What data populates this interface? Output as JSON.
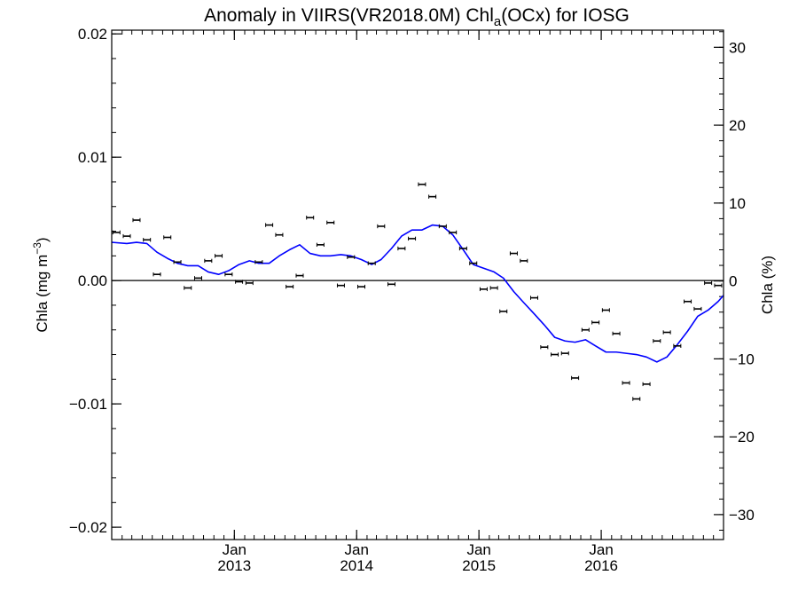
{
  "chart_data": {
    "type": "scatter",
    "title_main": "Anomaly in VIIRS(VR2018.0M) Chl",
    "title_sub": "a",
    "title_tail": "(OCx) for IOSG",
    "ylabel_left_main": "Chla (mg m",
    "ylabel_left_sup": "−3",
    "ylabel_left_tail": ")",
    "ylabel_right": "Chla (%)",
    "xlim": [
      "2012-01-01",
      "2016-12-31"
    ],
    "ylim": [
      -0.021,
      0.0203
    ],
    "ylim_right": [
      -33.2,
      32.2
    ],
    "grid": false,
    "y_ticks": [
      {
        "v": -0.02,
        "label": "−0.02"
      },
      {
        "v": -0.01,
        "label": "−0.01"
      },
      {
        "v": 0.0,
        "label": "0.00"
      },
      {
        "v": 0.01,
        "label": "0.01"
      },
      {
        "v": 0.02,
        "label": "0.02"
      }
    ],
    "y_minor_step": 0.002,
    "y2_ticks": [
      {
        "v": -30,
        "label": "−30"
      },
      {
        "v": -20,
        "label": "−20"
      },
      {
        "v": -10,
        "label": "−10"
      },
      {
        "v": 0,
        "label": "0"
      },
      {
        "v": 10,
        "label": "10"
      },
      {
        "v": 20,
        "label": "20"
      },
      {
        "v": 30,
        "label": "30"
      }
    ],
    "y2_minor_step": 2,
    "x_ticks": [
      {
        "date": "2013-01-01",
        "month": "Jan",
        "year": "2013"
      },
      {
        "date": "2014-01-01",
        "month": "Jan",
        "year": "2014"
      },
      {
        "date": "2015-01-01",
        "month": "Jan",
        "year": "2015"
      },
      {
        "date": "2016-01-01",
        "month": "Jan",
        "year": "2016"
      }
    ],
    "colors": {
      "points": "#000000",
      "line": "#0000ff",
      "zero_line": "#000000"
    },
    "series": [
      {
        "kind": "monthly_anomaly",
        "points": [
          [
            "2012-01-15",
            0.0039
          ],
          [
            "2012-02-15",
            0.0036
          ],
          [
            "2012-03-15",
            0.0049
          ],
          [
            "2012-04-15",
            0.0033
          ],
          [
            "2012-05-15",
            0.0005
          ],
          [
            "2012-06-15",
            0.0035
          ],
          [
            "2012-07-15",
            0.0015
          ],
          [
            "2012-08-15",
            -0.0006
          ],
          [
            "2012-09-15",
            0.0002
          ],
          [
            "2012-10-15",
            0.0016
          ],
          [
            "2012-11-15",
            0.002
          ],
          [
            "2012-12-15",
            0.0005
          ],
          [
            "2013-01-15",
            -0.0001
          ],
          [
            "2013-02-15",
            -0.0002
          ],
          [
            "2013-03-15",
            0.0015
          ],
          [
            "2013-04-15",
            0.0045
          ],
          [
            "2013-05-15",
            0.0037
          ],
          [
            "2013-06-15",
            -0.0005
          ],
          [
            "2013-07-15",
            0.0004
          ],
          [
            "2013-08-15",
            0.0051
          ],
          [
            "2013-09-15",
            0.0029
          ],
          [
            "2013-10-15",
            0.0047
          ],
          [
            "2013-11-15",
            -0.0004
          ],
          [
            "2013-12-15",
            0.0019
          ],
          [
            "2014-01-15",
            -0.0005
          ],
          [
            "2014-02-15",
            0.0014
          ],
          [
            "2014-03-15",
            0.0044
          ],
          [
            "2014-04-15",
            -0.0003
          ],
          [
            "2014-05-15",
            0.0026
          ],
          [
            "2014-06-15",
            0.0034
          ],
          [
            "2014-07-15",
            0.0078
          ],
          [
            "2014-08-15",
            0.0068
          ],
          [
            "2014-09-15",
            0.0044
          ],
          [
            "2014-10-15",
            0.0039
          ],
          [
            "2014-11-15",
            0.0026
          ],
          [
            "2014-12-15",
            0.0014
          ],
          [
            "2015-01-15",
            -0.0007
          ],
          [
            "2015-02-15",
            -0.0006
          ],
          [
            "2015-03-15",
            -0.0025
          ],
          [
            "2015-04-15",
            0.0022
          ],
          [
            "2015-05-15",
            0.0016
          ],
          [
            "2015-06-15",
            -0.0014
          ],
          [
            "2015-07-15",
            -0.0054
          ],
          [
            "2015-08-15",
            -0.006
          ],
          [
            "2015-09-15",
            -0.0059
          ],
          [
            "2015-10-15",
            -0.0079
          ],
          [
            "2015-11-15",
            -0.004
          ],
          [
            "2015-12-15",
            -0.0034
          ],
          [
            "2016-01-15",
            -0.0024
          ],
          [
            "2016-02-15",
            -0.0043
          ],
          [
            "2016-03-15",
            -0.0083
          ],
          [
            "2016-04-15",
            -0.0096
          ],
          [
            "2016-05-15",
            -0.0084
          ],
          [
            "2016-06-15",
            -0.0049
          ],
          [
            "2016-07-15",
            -0.0042
          ],
          [
            "2016-08-15",
            -0.0053
          ],
          [
            "2016-09-15",
            -0.0017
          ],
          [
            "2016-10-15",
            -0.0023
          ],
          [
            "2016-11-15",
            -0.0002
          ],
          [
            "2016-12-15",
            -0.0004
          ]
        ]
      },
      {
        "kind": "running_mean",
        "points": [
          [
            "2012-01-01",
            0.0031
          ],
          [
            "2012-02-15",
            0.003
          ],
          [
            "2012-03-15",
            0.0031
          ],
          [
            "2012-04-15",
            0.003
          ],
          [
            "2012-05-15",
            0.0023
          ],
          [
            "2012-06-15",
            0.0018
          ],
          [
            "2012-07-15",
            0.0014
          ],
          [
            "2012-08-15",
            0.0012
          ],
          [
            "2012-09-15",
            0.0012
          ],
          [
            "2012-10-15",
            0.0007
          ],
          [
            "2012-11-15",
            0.0005
          ],
          [
            "2012-12-15",
            0.0008
          ],
          [
            "2013-01-15",
            0.0013
          ],
          [
            "2013-02-15",
            0.0016
          ],
          [
            "2013-03-15",
            0.0014
          ],
          [
            "2013-04-15",
            0.0014
          ],
          [
            "2013-05-15",
            0.002
          ],
          [
            "2013-06-15",
            0.0025
          ],
          [
            "2013-07-15",
            0.0029
          ],
          [
            "2013-08-15",
            0.0022
          ],
          [
            "2013-09-15",
            0.002
          ],
          [
            "2013-10-15",
            0.002
          ],
          [
            "2013-11-15",
            0.0021
          ],
          [
            "2013-12-15",
            0.002
          ],
          [
            "2014-01-15",
            0.0017
          ],
          [
            "2014-02-15",
            0.0013
          ],
          [
            "2014-03-15",
            0.0017
          ],
          [
            "2014-04-15",
            0.0026
          ],
          [
            "2014-05-15",
            0.0036
          ],
          [
            "2014-06-15",
            0.0041
          ],
          [
            "2014-07-15",
            0.0041
          ],
          [
            "2014-08-15",
            0.0045
          ],
          [
            "2014-09-15",
            0.0044
          ],
          [
            "2014-10-15",
            0.0037
          ],
          [
            "2014-11-15",
            0.0025
          ],
          [
            "2014-12-15",
            0.0013
          ],
          [
            "2015-01-15",
            0.001
          ],
          [
            "2015-02-15",
            0.0007
          ],
          [
            "2015-03-15",
            0.0002
          ],
          [
            "2015-04-15",
            -0.0009
          ],
          [
            "2015-05-15",
            -0.0018
          ],
          [
            "2015-06-15",
            -0.0027
          ],
          [
            "2015-07-15",
            -0.0036
          ],
          [
            "2015-08-15",
            -0.0046
          ],
          [
            "2015-09-15",
            -0.0049
          ],
          [
            "2015-10-15",
            -0.005
          ],
          [
            "2015-11-15",
            -0.0048
          ],
          [
            "2015-12-15",
            -0.0053
          ],
          [
            "2016-01-15",
            -0.0058
          ],
          [
            "2016-02-15",
            -0.0058
          ],
          [
            "2016-03-15",
            -0.0059
          ],
          [
            "2016-04-15",
            -0.006
          ],
          [
            "2016-05-15",
            -0.0062
          ],
          [
            "2016-06-15",
            -0.0066
          ],
          [
            "2016-07-15",
            -0.0062
          ],
          [
            "2016-08-15",
            -0.0052
          ],
          [
            "2016-09-15",
            -0.0041
          ],
          [
            "2016-10-15",
            -0.0029
          ],
          [
            "2016-11-15",
            -0.0024
          ],
          [
            "2016-12-15",
            -0.0017
          ],
          [
            "2016-12-31",
            -0.0012
          ]
        ]
      }
    ]
  }
}
